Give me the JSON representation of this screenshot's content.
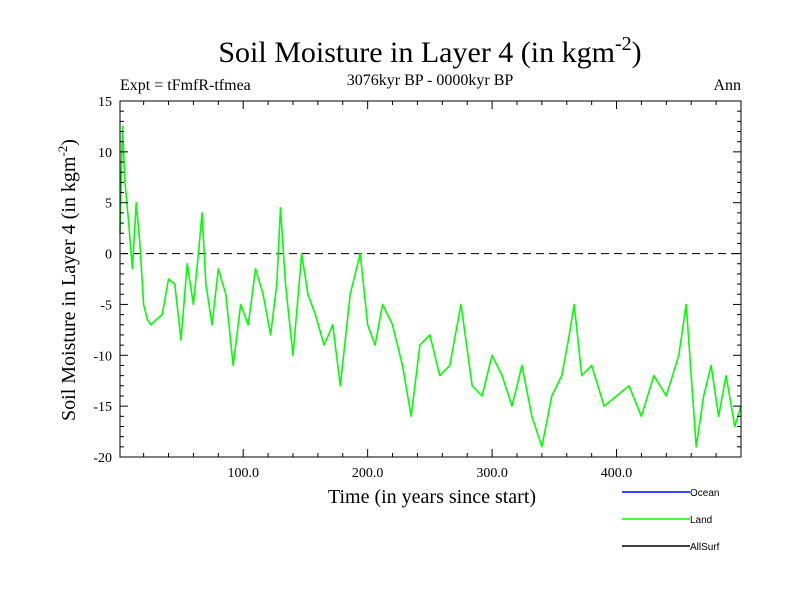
{
  "chart_data": {
    "type": "line",
    "title": "Soil Moisture in Layer 4 (in kgm",
    "title_superscript": "-2",
    "title_close": ")",
    "experiment": "Expt = tFmfR-tfmea",
    "period": "3076kyr BP - 0000kyr BP",
    "season": "Ann",
    "xlabel": "Time (in years since start)",
    "ylabel": "Soil Moisture in Layer 4 (in kgm",
    "ylabel_superscript": "-2",
    "ylabel_close": ")",
    "xlim": [
      1,
      500
    ],
    "ylim": [
      -20,
      15
    ],
    "x_ticks": [
      100,
      200,
      300,
      400
    ],
    "x_tick_labels": [
      "100.0",
      "200.0",
      "300.0",
      "400.0"
    ],
    "y_ticks": [
      15,
      10,
      5,
      0,
      -5,
      -10,
      -15,
      -20
    ],
    "y_tick_labels": [
      "15",
      "10",
      "5",
      "0",
      "-5",
      "-10",
      "-15",
      "-20"
    ],
    "reference_line": 0,
    "legend": [
      {
        "name": "Ocean",
        "color": "#0000ff"
      },
      {
        "name": "Land",
        "color": "#00ff00"
      },
      {
        "name": "AllSurf",
        "color": "#000000"
      }
    ],
    "series": [
      {
        "name": "Land",
        "color": "#00ff00",
        "x": [
          1,
          3,
          5,
          8,
          11,
          14,
          17,
          20,
          23,
          26,
          30,
          35,
          40,
          45,
          50,
          55,
          60,
          64,
          67,
          70,
          75,
          80,
          86,
          92,
          98,
          104,
          110,
          116,
          122,
          127,
          130,
          134,
          140,
          147,
          152,
          158,
          165,
          172,
          178,
          186,
          194,
          200,
          206,
          212,
          220,
          228,
          235,
          242,
          250,
          258,
          266,
          275,
          284,
          292,
          300,
          308,
          316,
          324,
          332,
          340,
          348,
          356,
          362,
          366,
          372,
          380,
          390,
          400,
          410,
          420,
          430,
          440,
          450,
          456,
          460,
          464,
          470,
          476,
          482,
          488,
          495,
          500
        ],
        "values": [
          2,
          12.5,
          7,
          3,
          -1.5,
          5,
          1,
          -5,
          -6.5,
          -7,
          -6.5,
          -6,
          -2.5,
          -3,
          -8.5,
          -1,
          -5,
          0,
          4,
          -3,
          -7,
          -1.5,
          -4,
          -11,
          -5,
          -7,
          -1.5,
          -4,
          -8,
          -3,
          4.5,
          -3,
          -10,
          0,
          -4,
          -6,
          -9,
          -7,
          -13,
          -4,
          0,
          -7,
          -9,
          -5,
          -7,
          -11,
          -16,
          -9,
          -8,
          -12,
          -11,
          -5,
          -13,
          -14,
          -10,
          -12,
          -15,
          -11,
          -16,
          -19,
          -14,
          -12,
          -8,
          -5,
          -12,
          -11,
          -15,
          -14,
          -13,
          -16,
          -12,
          -14,
          -10,
          -5,
          -12,
          -19,
          -14,
          -11,
          -16,
          -12,
          -17,
          -15
        ]
      }
    ]
  }
}
